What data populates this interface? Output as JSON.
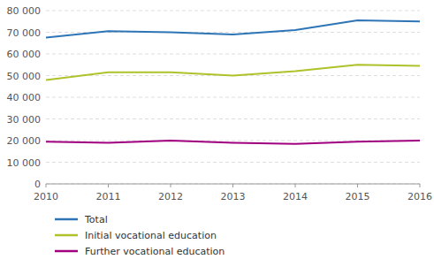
{
  "chart_data": {
    "type": "line",
    "x": [
      2010,
      2011,
      2012,
      2013,
      2014,
      2015,
      2016
    ],
    "xlim": [
      2010,
      2016
    ],
    "xticks": [
      2010,
      2011,
      2012,
      2013,
      2014,
      2015,
      2016
    ],
    "ylim": [
      0,
      80000
    ],
    "yticks": [
      0,
      {
        "value": 10000,
        "label": "10 000"
      },
      {
        "value": 20000,
        "label": "20 000"
      },
      {
        "value": 30000,
        "label": "30 000"
      },
      {
        "value": 40000,
        "label": "40 000"
      },
      {
        "value": 50000,
        "label": "50 000"
      },
      {
        "value": 60000,
        "label": "60 000"
      },
      {
        "value": 70000,
        "label": "70 000"
      },
      {
        "value": 80000,
        "label": "80 000"
      }
    ],
    "grid": true,
    "legend": "bottom",
    "series": [
      {
        "name": "Total",
        "color": "#2e75b6",
        "values": [
          67500,
          70500,
          70000,
          69000,
          71000,
          75500,
          75000
        ]
      },
      {
        "name": "Initial vocational education",
        "color": "#afc22a",
        "values": [
          48000,
          51500,
          51500,
          50000,
          52000,
          55000,
          54500
        ]
      },
      {
        "name": "Further vocational education",
        "color": "#a0007f",
        "values": [
          19500,
          19000,
          20000,
          19000,
          18500,
          19500,
          20000
        ]
      }
    ]
  }
}
